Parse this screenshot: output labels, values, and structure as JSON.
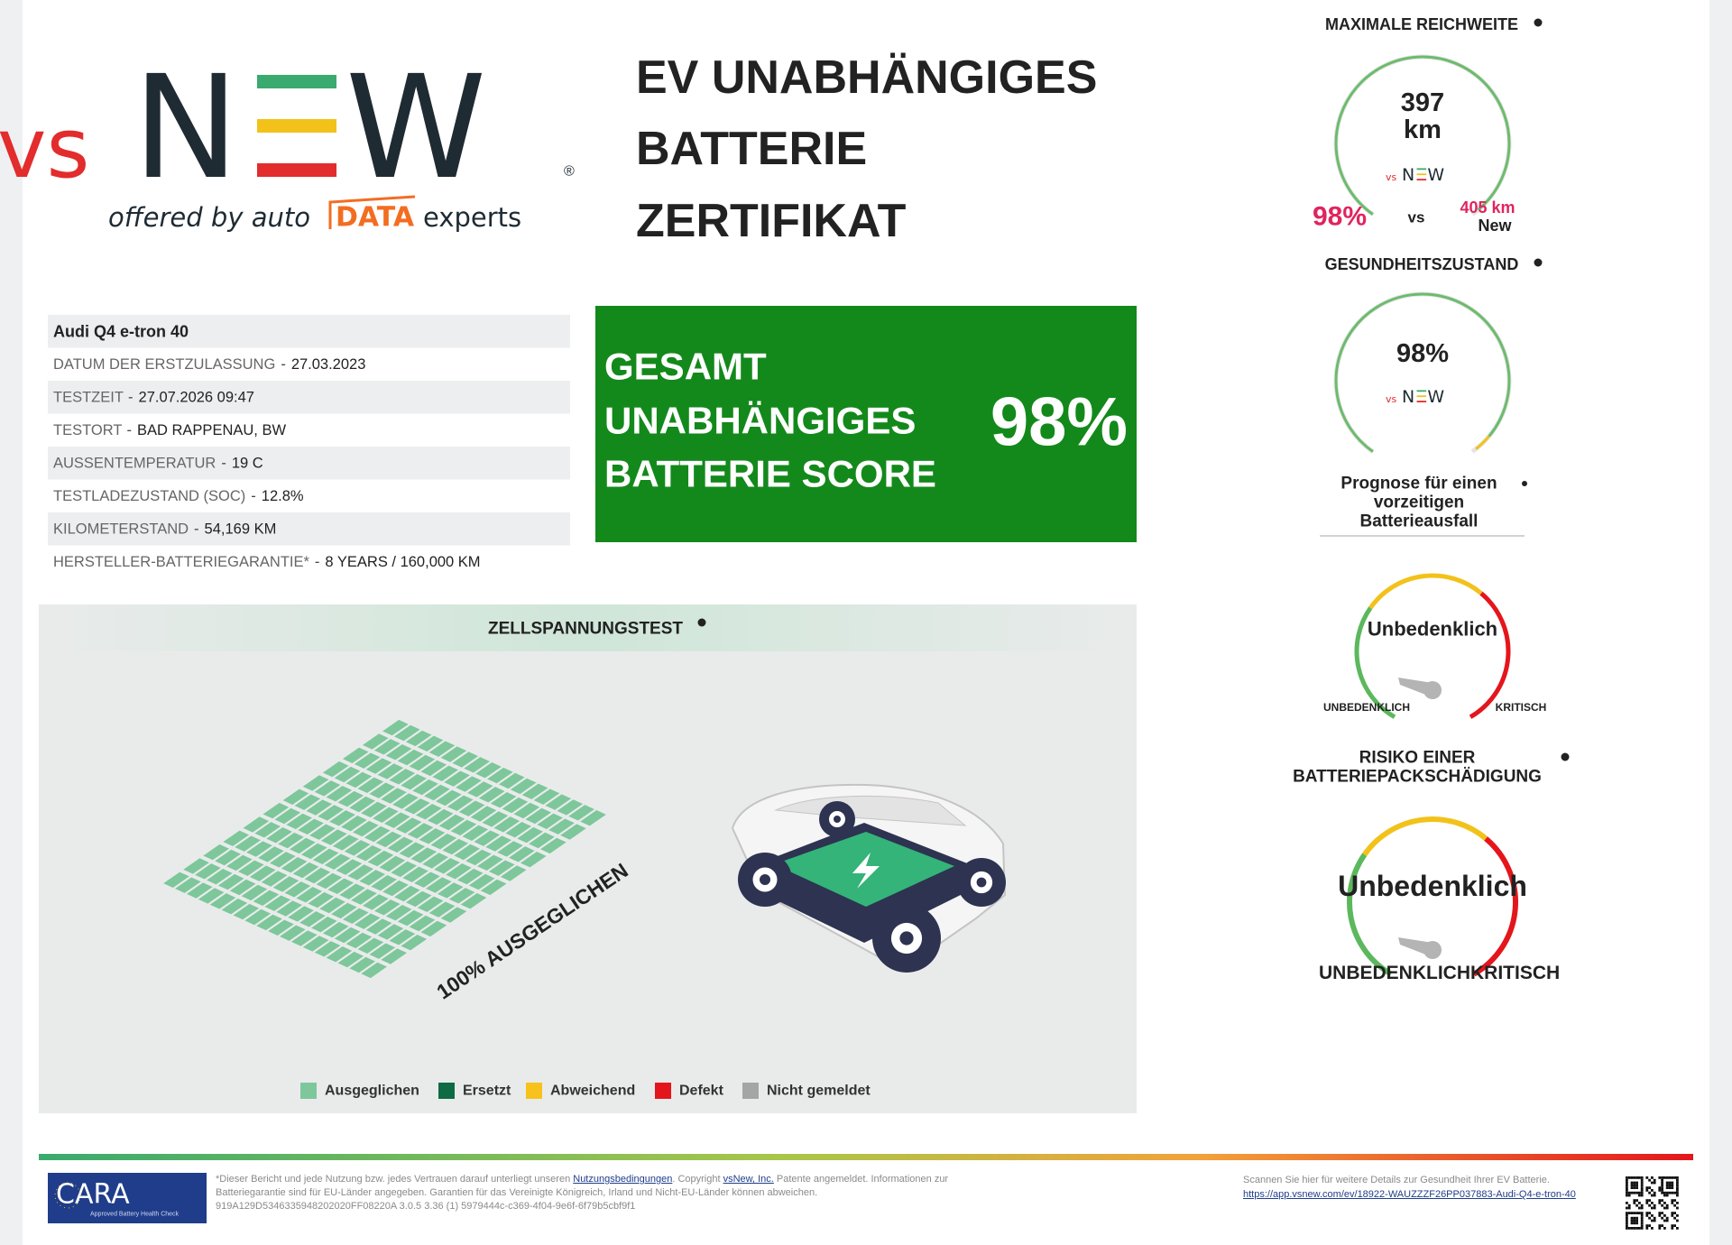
{
  "logo": {
    "vs": "vs",
    "n": "N",
    "w": "W",
    "registered": "®",
    "offered_by": "offered by auto",
    "data": "DATA",
    "experts": "experts"
  },
  "header": {
    "title_lines": [
      "EV UNABHÄNGIGES",
      "BATTERIE",
      "ZERTIFIKAT"
    ]
  },
  "vehicle": {
    "model": "Audi Q4 e-tron 40",
    "separator": "-",
    "rows": [
      [
        "DATUM DER ERSTZULASSUNG",
        "27.03.2023"
      ],
      [
        "TESTZEIT",
        "27.07.2026 09:47"
      ],
      [
        "TESTORT",
        "BAD RAPPENAU, BW"
      ],
      [
        "AUSSENTEMPERATUR",
        "19 C"
      ],
      [
        "TESTLADEZUSTAND (SOC)",
        "12.8%"
      ],
      [
        "KILOMETERSTAND",
        "54,169 KM"
      ],
      [
        "HERSTELLER-BATTERIEGARANTIE*",
        "8 YEARS / 160,000 KM"
      ]
    ]
  },
  "score": {
    "lines": [
      "GESAMT",
      "UNABHÄNGIGES",
      "BATTERIE SCORE"
    ],
    "value": "98%"
  },
  "cell_test": {
    "title": "ZELLSPANNUNGSTEST",
    "status": "100% AUSGEGLICHEN",
    "legend": [
      {
        "label": "Ausgeglichen",
        "color": "#7dc79b"
      },
      {
        "label": "Ersetzt",
        "color": "#0e6b43"
      },
      {
        "label": "Abweichend",
        "color": "#f7c21c"
      },
      {
        "label": "Defekt",
        "color": "#e3161c"
      },
      {
        "label": "Nicht gemeldet",
        "color": "#a5a5a5"
      }
    ]
  },
  "range": {
    "title": "MAXIMALE REICHWEITE",
    "value": "397",
    "unit": "km",
    "percent": "98%",
    "vs": "vs",
    "new_value": "405 km",
    "new_label": "New"
  },
  "health": {
    "title": "GESUNDHEITSZUSTAND",
    "value": "98%"
  },
  "failure_forecast": {
    "title_lines": [
      "Prognose für einen",
      "vorzeitigen",
      "Batterieausfall"
    ],
    "status": "Unbedenklich",
    "low": "UNBEDENKLICH",
    "high": "KRITISCH"
  },
  "pack_damage": {
    "title_lines": [
      "RISIKO EINER",
      "BATTERIEPACKSCHÄDIGUNG"
    ],
    "status": "Unbedenklich",
    "low": "UNBEDENKLICH",
    "high": "KRITISCH"
  },
  "footer": {
    "badge_title": "CARA",
    "badge_subtitle": "Approved Battery Health Check",
    "disclaimer_start": "*Dieser Bericht und jede Nutzung bzw. jedes Vertrauen darauf unterliegt unseren",
    "terms_link": "Nutzungsbedingungen",
    "copyright": ". Copyright",
    "company_link": "vsNew, Inc.",
    "disclaimer_end": "Patente angemeldet. Informationen zur Batteriegarantie sind für EU-Länder angegeben. Garantien für das Vereinigte Königreich, Irland und Nicht-EU-Länder können abweichen.",
    "report_id": "919A129D5346335948202020FF08220A 3.0.5 3.36 (1) 5979444c-c369-4f04-9e6f-6f79b5cbf9f1",
    "scan_text": "Scannen Sie hier für weitere Details zur Gesundheit Ihrer EV Batterie.",
    "url": "https://app.vsnew.com/ev/18922-WAUZZZF26PP037883-Audi-Q4-e-tron-40"
  }
}
